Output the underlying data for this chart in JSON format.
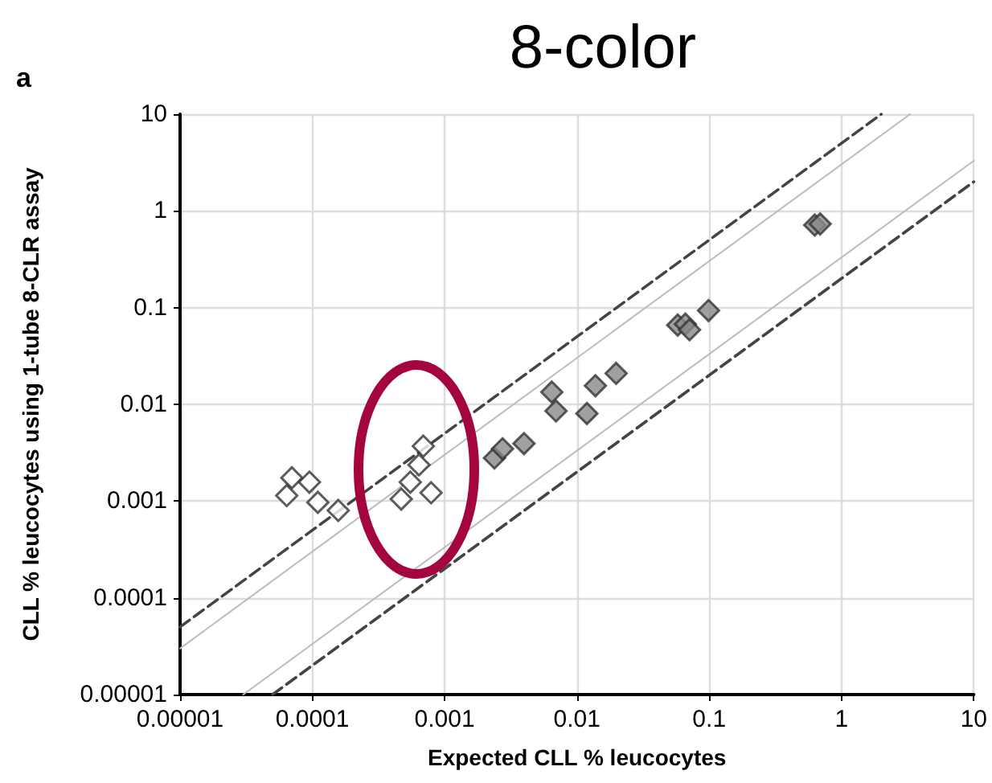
{
  "chart_data": {
    "type": "scatter",
    "title": "8-color",
    "xlabel": "Expected CLL % leucocytes",
    "ylabel": "CLL % leucocytes using 1-tube 8-CLR assay",
    "annotations": [
      "a"
    ],
    "log": "xy",
    "grid": true,
    "marker": "diamond",
    "xlim": [
      1e-05,
      10
    ],
    "ylim": [
      1e-05,
      10
    ],
    "xticks": [
      {
        "value": 1e-05,
        "label": "0.00001"
      },
      0.0001,
      0.001,
      0.01,
      0.1,
      1,
      10
    ],
    "yticks": [
      {
        "value": 1e-05,
        "label": "0.00001"
      },
      0.0001,
      0.001,
      0.01,
      0.1,
      1,
      10
    ],
    "series": [
      {
        "type": "line",
        "marker": "none",
        "line_style": "dashed",
        "color": "#444444",
        "x": [
          1e-05,
          2
        ],
        "values": [
          5e-05,
          10
        ]
      },
      {
        "type": "line",
        "marker": "none",
        "line_style": "solid",
        "color": "#bbbbbb",
        "x": [
          1e-05,
          3.3
        ],
        "values": [
          3e-05,
          10
        ]
      },
      {
        "type": "line",
        "marker": "none",
        "line_style": "solid",
        "color": "#bbbbbb",
        "x": [
          3e-05,
          10
        ],
        "values": [
          1e-05,
          3.3
        ]
      },
      {
        "type": "line",
        "marker": "none",
        "line_style": "dashed",
        "color": "#444444",
        "x": [
          5e-05,
          10
        ],
        "values": [
          1e-05,
          2
        ]
      },
      {
        "color": "#ffffff",
        "x": [
          7e-05,
          9.5e-05,
          6.4e-05,
          0.00011,
          0.000157,
          0.00069,
          0.00064,
          0.00055,
          0.00079,
          0.00047
        ],
        "values": [
          0.00174,
          0.00157,
          0.00114,
          0.00097,
          0.0008,
          0.0037,
          0.00237,
          0.00157,
          0.00122,
          0.00105
        ]
      },
      {
        "color": "#888888",
        "x": [
          0.00238,
          0.00274,
          0.00398,
          0.00646,
          0.00695,
          0.0119,
          0.0138,
          0.0198,
          0.0578,
          0.066,
          0.071,
          0.0989,
          0.628,
          0.69
        ],
        "values": [
          0.00279,
          0.00347,
          0.00393,
          0.0134,
          0.00855,
          0.00804,
          0.0156,
          0.0209,
          0.066,
          0.0676,
          0.059,
          0.0933,
          0.714,
          0.733
        ]
      }
    ]
  }
}
